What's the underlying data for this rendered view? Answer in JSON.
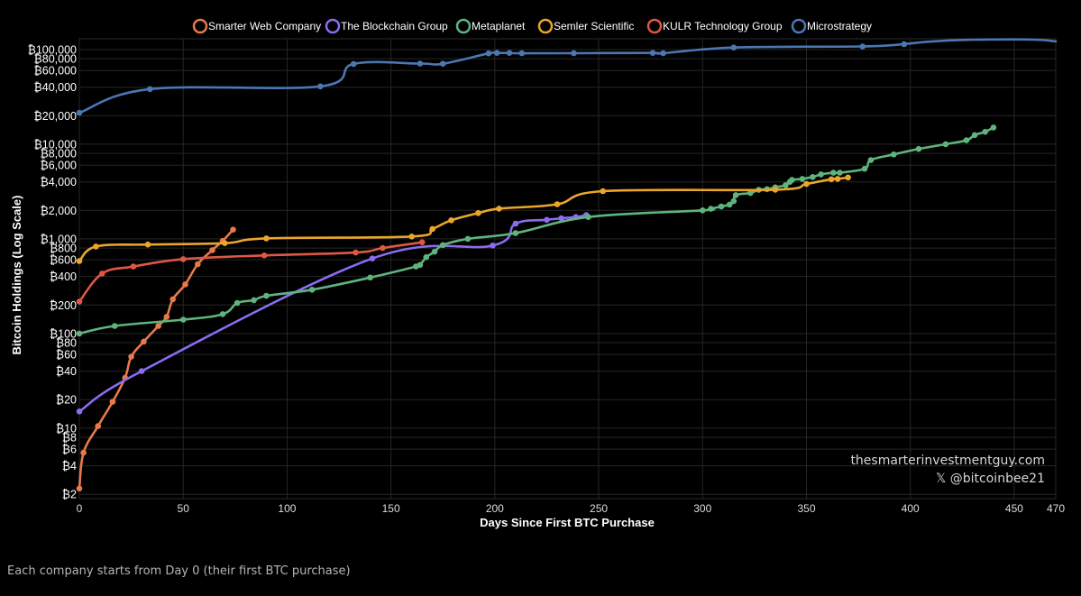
{
  "chart_data": {
    "type": "line",
    "xlabel": "Days Since First BTC Purchase",
    "ylabel": "Bitcoin Holdings (Log Scale)",
    "y_scale": "log",
    "xlim": [
      0,
      470
    ],
    "ylim": [
      1.8,
      130000
    ],
    "x_ticks": [
      0,
      50,
      100,
      150,
      200,
      250,
      300,
      350,
      400,
      450,
      470
    ],
    "y_ticks": [
      {
        "value": 2,
        "label": "₿2"
      },
      {
        "value": 4,
        "label": "₿4"
      },
      {
        "value": 6,
        "label": "₿6"
      },
      {
        "value": 8,
        "label": "₿8"
      },
      {
        "value": 10,
        "label": "₿10"
      },
      {
        "value": 20,
        "label": "₿20"
      },
      {
        "value": 40,
        "label": "₿40"
      },
      {
        "value": 60,
        "label": "₿60"
      },
      {
        "value": 80,
        "label": "₿80"
      },
      {
        "value": 100,
        "label": "₿100"
      },
      {
        "value": 200,
        "label": "₿200"
      },
      {
        "value": 400,
        "label": "₿400"
      },
      {
        "value": 600,
        "label": "₿600"
      },
      {
        "value": 800,
        "label": "₿800"
      },
      {
        "value": 1000,
        "label": "₿1,000"
      },
      {
        "value": 2000,
        "label": "₿2,000"
      },
      {
        "value": 4000,
        "label": "₿4,000"
      },
      {
        "value": 6000,
        "label": "₿6,000"
      },
      {
        "value": 8000,
        "label": "₿8,000"
      },
      {
        "value": 10000,
        "label": "₿10,000"
      },
      {
        "value": 20000,
        "label": "₿20,000"
      },
      {
        "value": 40000,
        "label": "₿40,000"
      },
      {
        "value": 60000,
        "label": "₿60,000"
      },
      {
        "value": 80000,
        "label": "₿80,000"
      },
      {
        "value": 100000,
        "label": "₿100,000"
      }
    ],
    "grid": true,
    "legend_position": "top",
    "series": [
      {
        "name": "Smarter Web Company",
        "color": "#e8794a",
        "markers": true,
        "x": [
          0,
          2,
          9,
          16,
          22,
          25,
          31,
          38,
          42,
          45,
          51,
          57,
          64,
          69,
          74
        ],
        "y": [
          2.3,
          5.5,
          10.5,
          19,
          34,
          57,
          82,
          120,
          150,
          230,
          330,
          540,
          760,
          950,
          1250
        ]
      },
      {
        "name": "The Blockchain Group",
        "color": "#8b6cf0",
        "markers": true,
        "x": [
          0,
          30,
          141,
          199,
          210,
          225,
          232,
          239,
          244
        ],
        "y": [
          15,
          40,
          620,
          850,
          1450,
          1590,
          1650,
          1700,
          1780
        ]
      },
      {
        "name": "Metaplanet",
        "color": "#5fb47d",
        "markers": true,
        "x": [
          0,
          17,
          50,
          69,
          76,
          84,
          90,
          112,
          140,
          162,
          164,
          167,
          171,
          175,
          187,
          210,
          245,
          300,
          304,
          309,
          313,
          315,
          316,
          323,
          327,
          331,
          335,
          340,
          342,
          343,
          348,
          353,
          357,
          363,
          366,
          378,
          381,
          392,
          404,
          417,
          427,
          431,
          436,
          440
        ],
        "y": [
          100,
          120,
          140,
          160,
          210,
          225,
          250,
          290,
          390,
          510,
          530,
          640,
          730,
          860,
          1000,
          1150,
          1700,
          2000,
          2080,
          2200,
          2300,
          2500,
          2900,
          3050,
          3300,
          3350,
          3500,
          3700,
          4000,
          4200,
          4300,
          4500,
          4800,
          5000,
          5000,
          5500,
          6800,
          7800,
          8900,
          10000,
          11000,
          12500,
          13500,
          15000
        ]
      },
      {
        "name": "Semler Scientific",
        "color": "#eaa62b",
        "markers": true,
        "x": [
          0,
          8,
          33,
          70,
          90,
          160,
          170,
          179,
          192,
          202,
          230,
          252,
          335,
          350,
          362,
          365,
          370
        ],
        "y": [
          581,
          829,
          870,
          900,
          1012,
          1058,
          1273,
          1570,
          1873,
          2084,
          2321,
          3192,
          3303,
          3807,
          4264,
          4300,
          4449
        ]
      },
      {
        "name": "KULR Technology Group",
        "color": "#de5845",
        "markers": true,
        "x": [
          0,
          11,
          26,
          50,
          89,
          133,
          146,
          165
        ],
        "y": [
          217,
          430,
          510,
          610,
          668,
          717,
          800,
          920
        ]
      },
      {
        "name": "Microstrategy",
        "color": "#4b77b3",
        "markers": true,
        "x": [
          0,
          34,
          116,
          132,
          164,
          175,
          197,
          201,
          207,
          213,
          238,
          276,
          281,
          315,
          377,
          397
        ],
        "y": [
          21454,
          38250,
          40824,
          70470,
          71079,
          70784,
          91064,
          92079,
          92079,
          91326,
          91579,
          92079,
          91579,
          105085,
          108000,
          114042
        ]
      }
    ]
  },
  "watermark": {
    "site": "thesmarterinvestmentguy.com",
    "handle": "𝕏 @bitcoinbee21"
  },
  "caption": "Each company starts from Day 0 (their first BTC purchase)"
}
